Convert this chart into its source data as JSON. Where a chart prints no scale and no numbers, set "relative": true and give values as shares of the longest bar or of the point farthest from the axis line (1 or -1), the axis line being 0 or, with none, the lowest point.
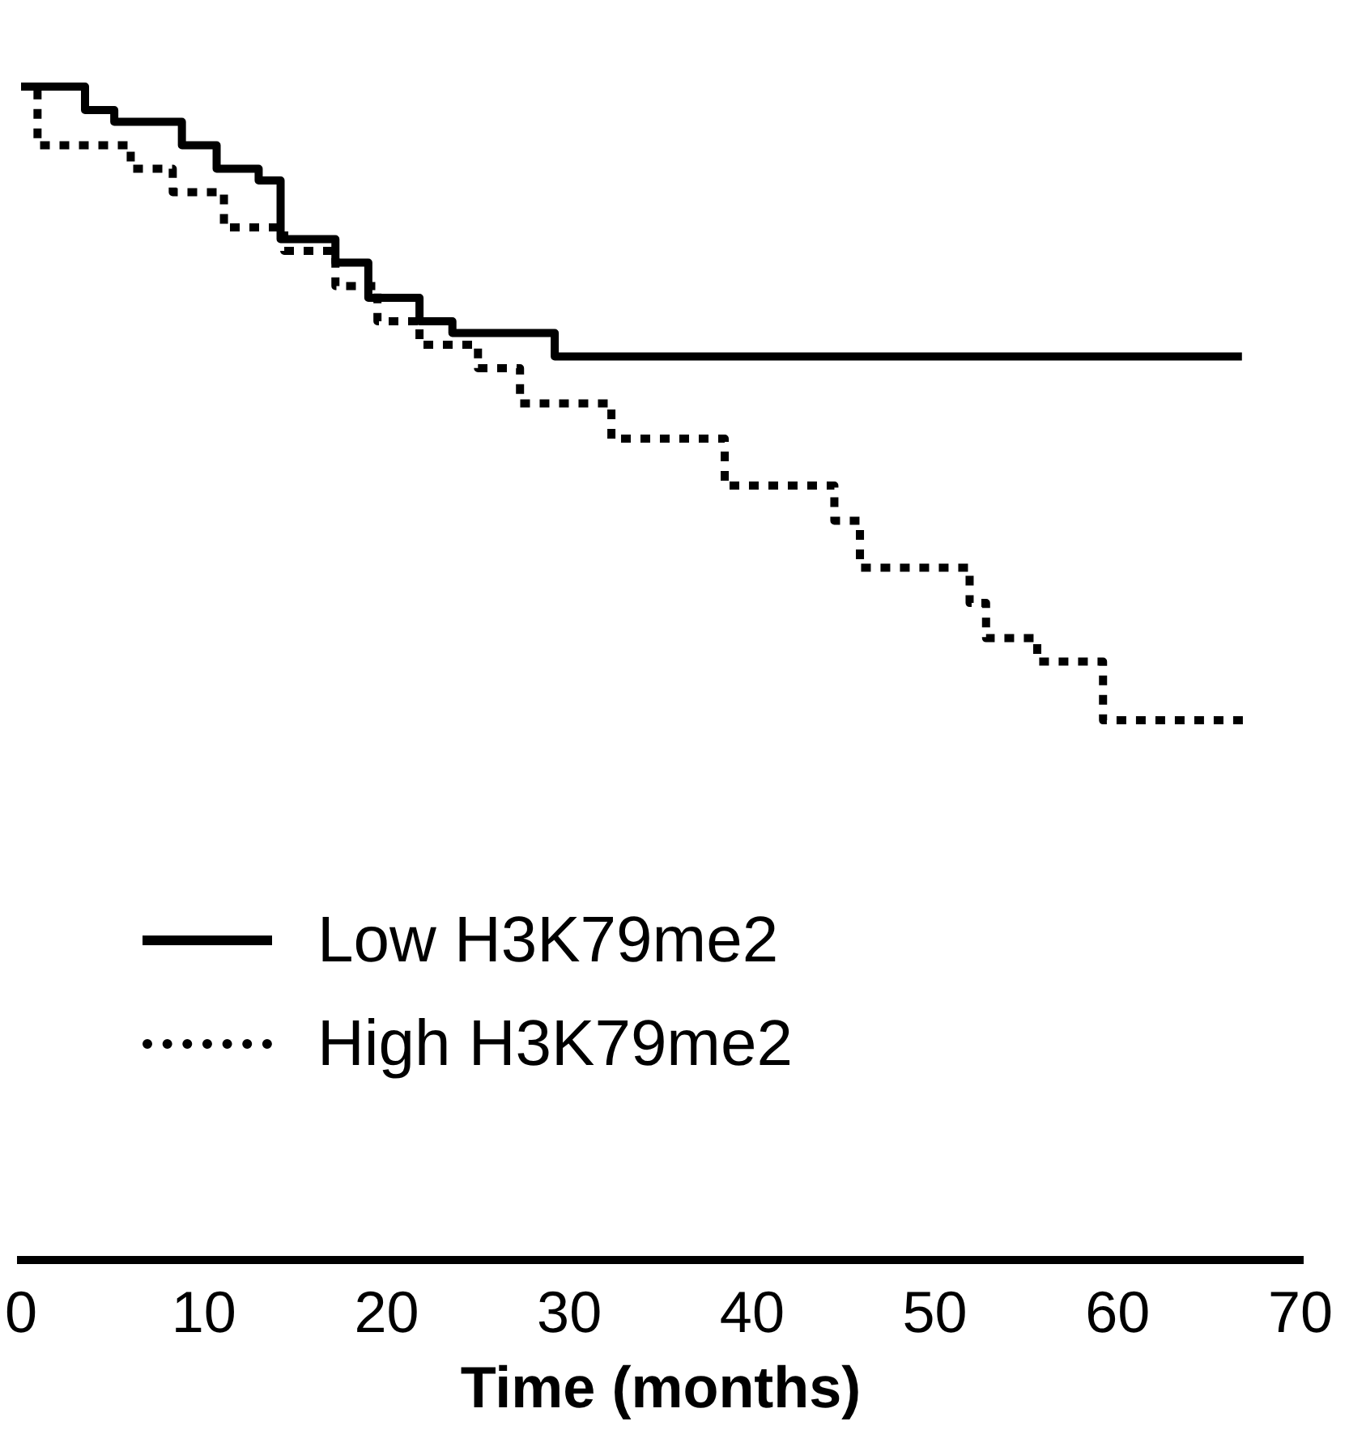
{
  "chart_data": {
    "type": "step",
    "relative": true,
    "xlabel": "Time (months)",
    "xlim": [
      0,
      70
    ],
    "xticks": [
      0,
      10,
      20,
      30,
      40,
      50,
      60,
      70
    ],
    "legend": "bottom left",
    "grid": false,
    "series": [
      {
        "name": "Low H3K79me2",
        "color": "#000000",
        "line_style": "solid",
        "x": [
          0,
          3.5,
          5.1,
          8.8,
          10.7,
          13,
          14.2,
          17.2,
          19,
          21.8,
          23.6,
          29.2,
          66.8
        ],
        "values": [
          1,
          0.98,
          0.97,
          0.95,
          0.93,
          0.92,
          0.87,
          0.85,
          0.82,
          0.8,
          0.79,
          0.77,
          0.77
        ]
      },
      {
        "name": "High H3K79me2",
        "color": "#000000",
        "line_style": "dotted",
        "x": [
          0,
          0.9,
          6,
          8.3,
          11.1,
          14.4,
          17.2,
          19.5,
          21.8,
          25,
          27.3,
          32.3,
          38.5,
          44.5,
          45.9,
          51.9,
          52.8,
          55.6,
          59.2,
          67.2
        ],
        "values": [
          1,
          0.95,
          0.93,
          0.91,
          0.88,
          0.86,
          0.83,
          0.8,
          0.78,
          0.76,
          0.73,
          0.7,
          0.66,
          0.63,
          0.59,
          0.56,
          0.53,
          0.51,
          0.46,
          0.46
        ]
      }
    ]
  }
}
